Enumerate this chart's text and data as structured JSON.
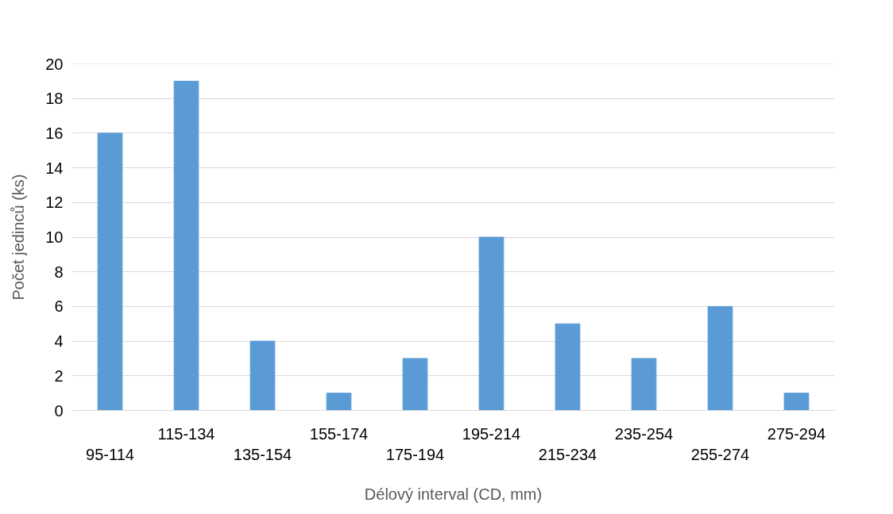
{
  "chart_data": {
    "type": "bar",
    "xlabel": "Délový interval (CD, mm)",
    "ylabel": "Počet jedinců (ks)",
    "categories": [
      "95-114",
      "115-134",
      "135-154",
      "155-174",
      "175-194",
      "195-214",
      "215-234",
      "235-254",
      "255-274",
      "275-294"
    ],
    "values": [
      16,
      19,
      4,
      1,
      3,
      10,
      5,
      3,
      6,
      1
    ],
    "color": "#5b9bd5",
    "ylim": [
      0,
      20
    ],
    "yticks": [
      0,
      2,
      4,
      6,
      8,
      10,
      12,
      14,
      16,
      18,
      20
    ],
    "grid": "y"
  }
}
